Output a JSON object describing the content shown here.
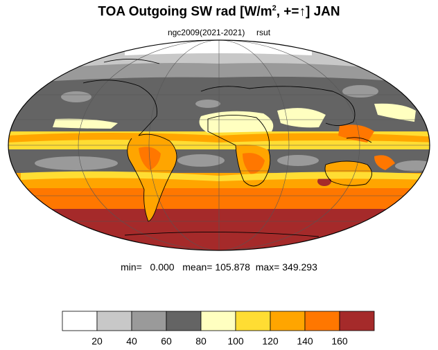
{
  "title": {
    "main": "TOA Outgoing SW rad [W/m",
    "sup": "2",
    "rest": ", +=↑] JAN"
  },
  "subtitle": {
    "run": "ngc2009(2021-2021)",
    "variable": "rsut"
  },
  "stats": {
    "min_label": "min=",
    "min": "0.000",
    "mean_label": "mean=",
    "mean": "105.878",
    "max_label": "max=",
    "max": "349.293"
  },
  "colorbar": {
    "colors": [
      "#ffffff",
      "#c8c8c8",
      "#9a9a9a",
      "#646464",
      "#ffffc0",
      "#ffdd33",
      "#ffa500",
      "#ff7700",
      "#a52a2a"
    ],
    "labels": [
      "20",
      "40",
      "60",
      "80",
      "100",
      "120",
      "140",
      "160"
    ]
  },
  "map": {
    "projection": "mollweide",
    "field_description": "regions colored by the colorbar levels"
  }
}
